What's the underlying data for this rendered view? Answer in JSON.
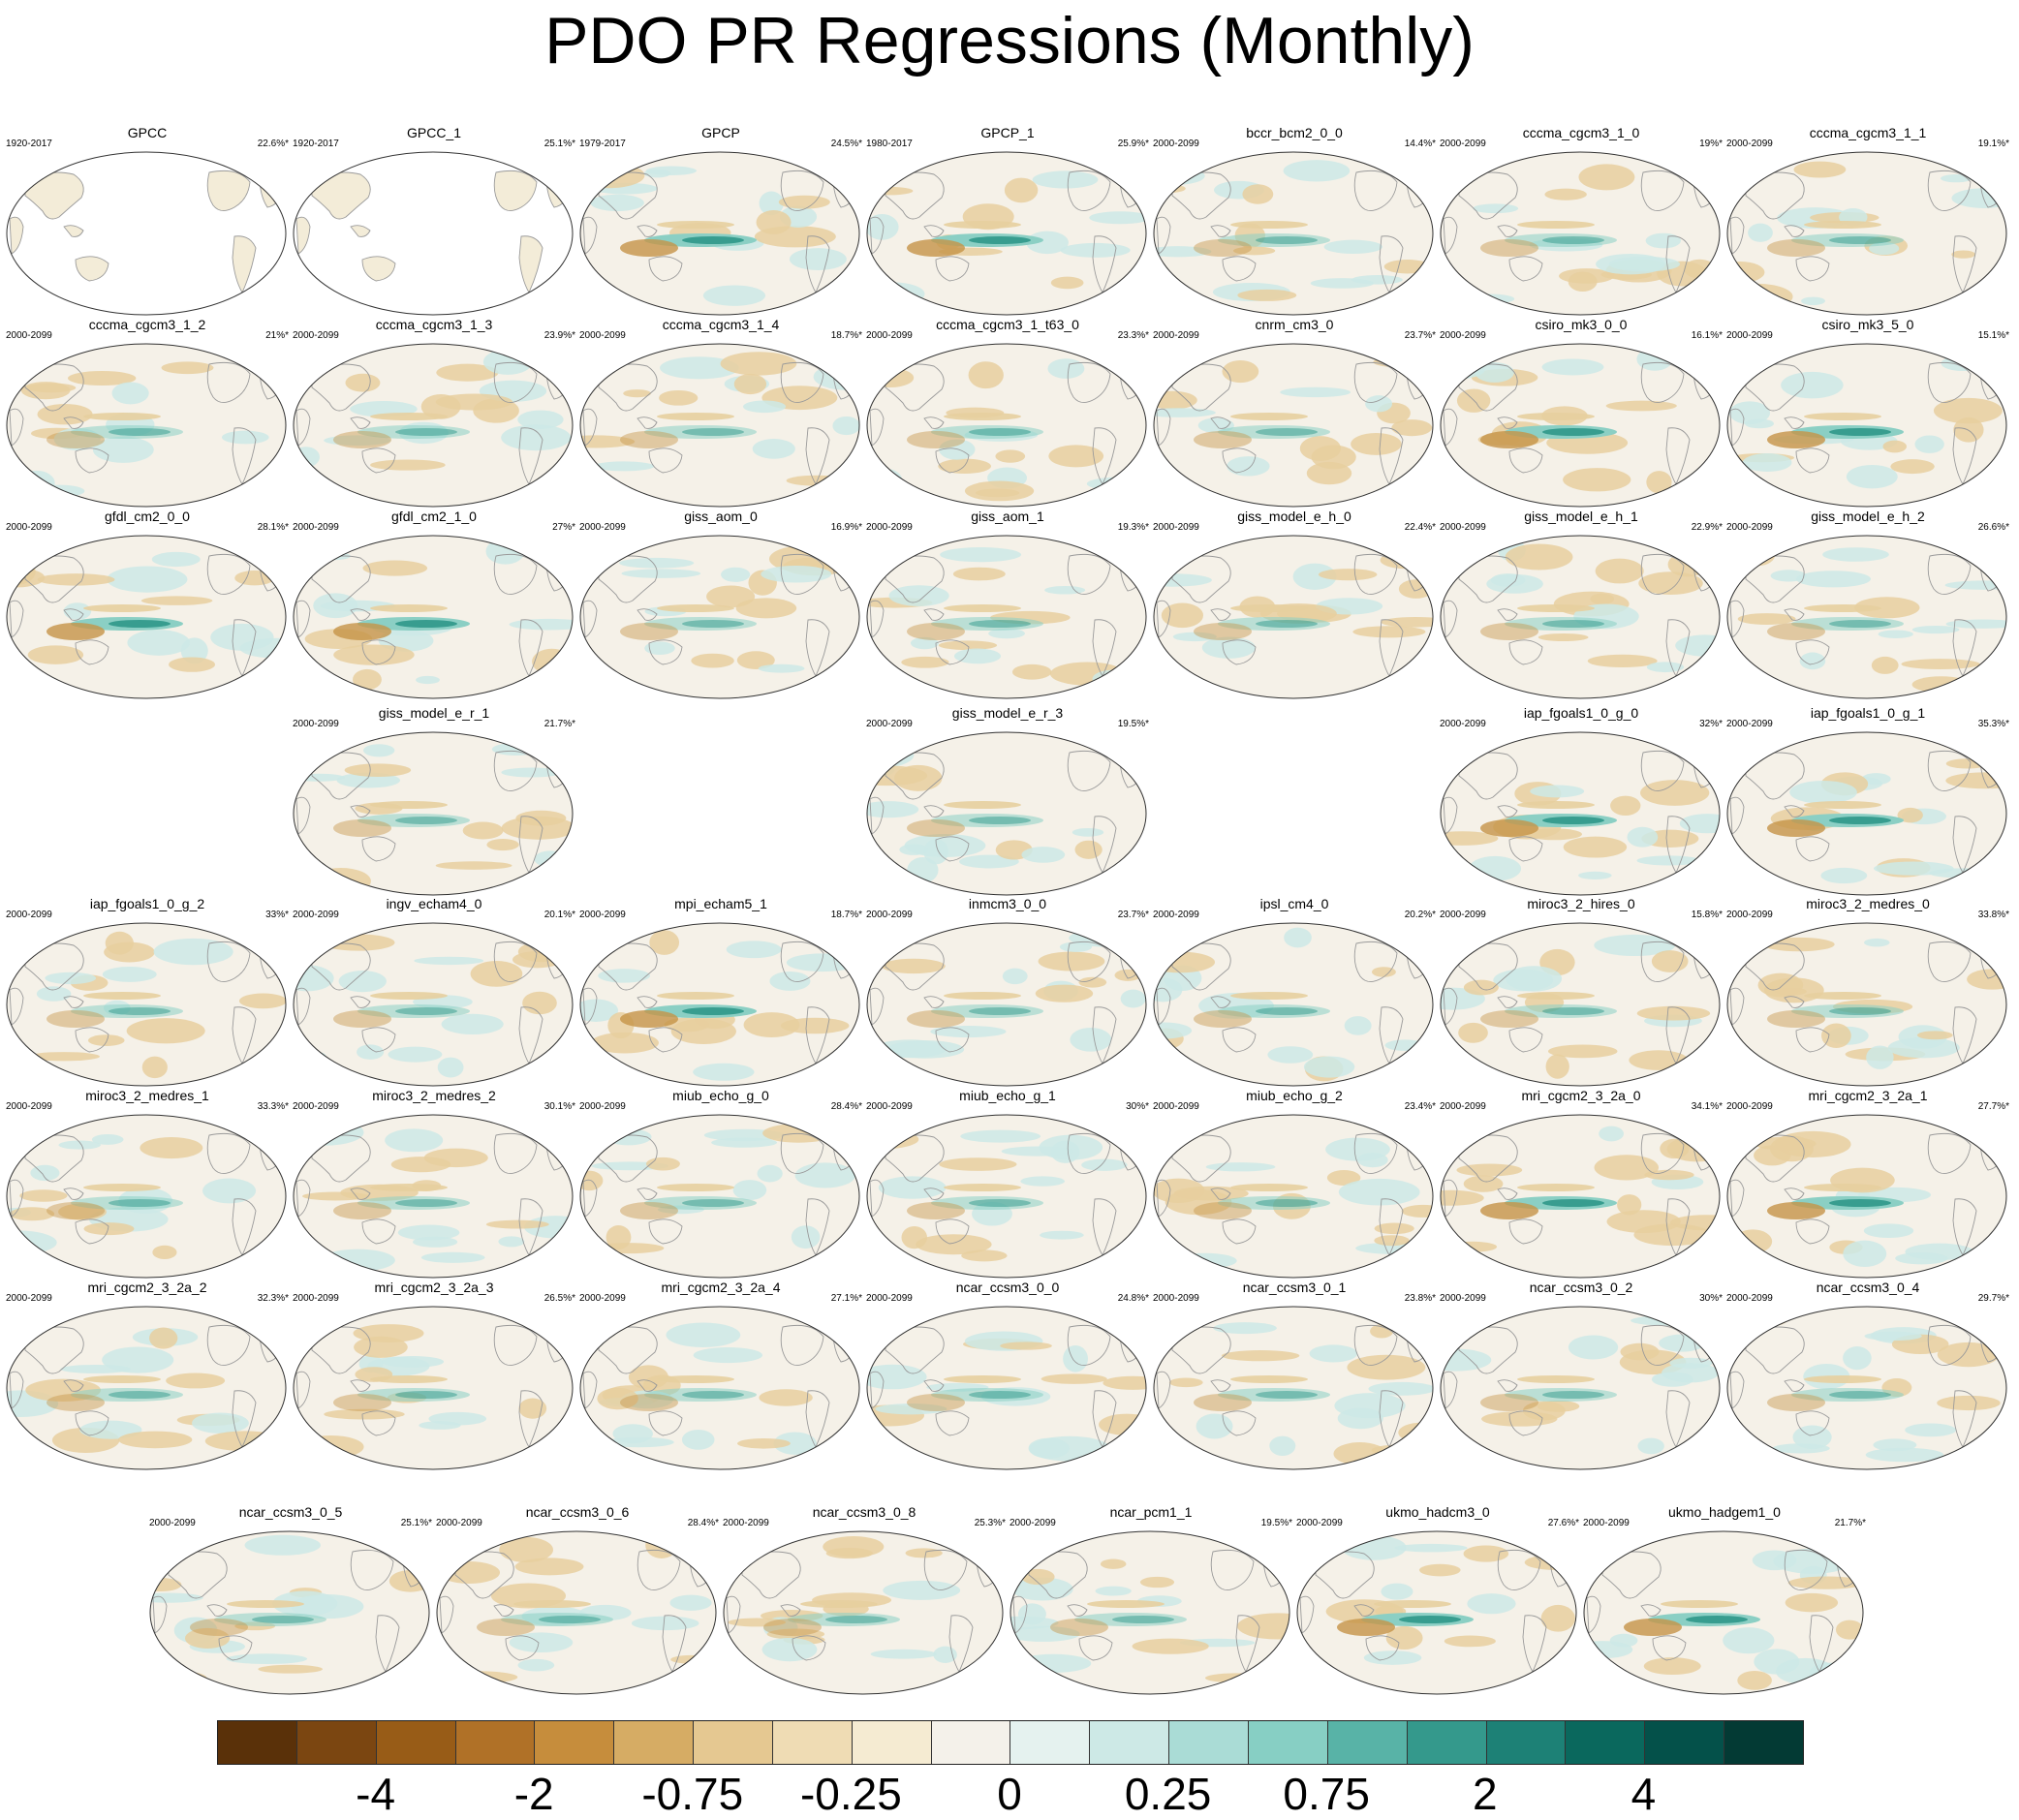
{
  "title": "PDO PR Regressions (Monthly)",
  "colors": {
    "brown_strong": "#8a5418",
    "brown": "#c59447",
    "tan": "#e7cf9f",
    "neutral": "#f5f1e8",
    "teal_light": "#cde9e6",
    "teal": "#8bcfc4",
    "teal_strong": "#2f978a",
    "land_line": "#9a9a9a"
  },
  "colorbar": {
    "boxes": [
      "#5a3109",
      "#7b4611",
      "#985c17",
      "#b07127",
      "#c68d3c",
      "#d6ac64",
      "#e5c891",
      "#efdcb4",
      "#f5ebd2",
      "#f4f1ea",
      "#e5f2ef",
      "#cde9e6",
      "#aadcd6",
      "#87cfc4",
      "#58b3a7",
      "#34998c",
      "#1d8176",
      "#0a685d",
      "#04514a",
      "#033a34"
    ],
    "labels": [
      "-4",
      "-2",
      "-0.75",
      "-0.25",
      "0",
      "0.25",
      "0.75",
      "2",
      "4"
    ]
  },
  "panels": [
    {
      "name": "GPCC",
      "period": "1920-2017",
      "pct": "22.6%*"
    },
    {
      "name": "GPCC_1",
      "period": "1920-2017",
      "pct": "25.1%*"
    },
    {
      "name": "GPCP",
      "period": "1979-2017",
      "pct": "24.5%*"
    },
    {
      "name": "GPCP_1",
      "period": "1980-2017",
      "pct": "25.9%*"
    },
    {
      "name": "bccr_bcm2_0_0",
      "period": "2000-2099",
      "pct": "14.4%*"
    },
    {
      "name": "cccma_cgcm3_1_0",
      "period": "2000-2099",
      "pct": "19%*"
    },
    {
      "name": "cccma_cgcm3_1_1",
      "period": "2000-2099",
      "pct": "19.1%*"
    },
    {
      "name": "cccma_cgcm3_1_2",
      "period": "2000-2099",
      "pct": "21%*"
    },
    {
      "name": "cccma_cgcm3_1_3",
      "period": "2000-2099",
      "pct": "23.9%*"
    },
    {
      "name": "cccma_cgcm3_1_4",
      "period": "2000-2099",
      "pct": "18.7%*"
    },
    {
      "name": "cccma_cgcm3_1_t63_0",
      "period": "2000-2099",
      "pct": "23.3%*"
    },
    {
      "name": "cnrm_cm3_0",
      "period": "2000-2099",
      "pct": "23.7%*"
    },
    {
      "name": "csiro_mk3_0_0",
      "period": "2000-2099",
      "pct": "16.1%*"
    },
    {
      "name": "csiro_mk3_5_0",
      "period": "2000-2099",
      "pct": "15.1%*"
    },
    {
      "name": "gfdl_cm2_0_0",
      "period": "2000-2099",
      "pct": "28.1%*"
    },
    {
      "name": "gfdl_cm2_1_0",
      "period": "2000-2099",
      "pct": "27%*"
    },
    {
      "name": "giss_aom_0",
      "period": "2000-2099",
      "pct": "16.9%*"
    },
    {
      "name": "giss_aom_1",
      "period": "2000-2099",
      "pct": "19.3%*"
    },
    {
      "name": "giss_model_e_h_0",
      "period": "2000-2099",
      "pct": "22.4%*"
    },
    {
      "name": "giss_model_e_h_1",
      "period": "2000-2099",
      "pct": "22.9%*"
    },
    {
      "name": "giss_model_e_h_2",
      "period": "2000-2099",
      "pct": "26.6%*"
    },
    {
      "name": "giss_model_e_r_1",
      "period": "2000-2099",
      "pct": "21.7%*"
    },
    {
      "name": "giss_model_e_r_3",
      "period": "2000-2099",
      "pct": "19.5%*"
    },
    {
      "name": "iap_fgoals1_0_g_0",
      "period": "2000-2099",
      "pct": "32%*"
    },
    {
      "name": "iap_fgoals1_0_g_1",
      "period": "2000-2099",
      "pct": "35.3%*"
    },
    {
      "name": "iap_fgoals1_0_g_2",
      "period": "2000-2099",
      "pct": "33%*"
    },
    {
      "name": "ingv_echam4_0",
      "period": "2000-2099",
      "pct": "20.1%*"
    },
    {
      "name": "mpi_echam5_1",
      "period": "2000-2099",
      "pct": "18.7%*"
    },
    {
      "name": "inmcm3_0_0",
      "period": "2000-2099",
      "pct": "23.7%*"
    },
    {
      "name": "ipsl_cm4_0",
      "period": "2000-2099",
      "pct": "20.2%*"
    },
    {
      "name": "miroc3_2_hires_0",
      "period": "2000-2099",
      "pct": "15.8%*"
    },
    {
      "name": "miroc3_2_medres_0",
      "period": "2000-2099",
      "pct": "33.8%*"
    },
    {
      "name": "miroc3_2_medres_1",
      "period": "2000-2099",
      "pct": "33.3%*"
    },
    {
      "name": "miroc3_2_medres_2",
      "period": "2000-2099",
      "pct": "30.1%*"
    },
    {
      "name": "miub_echo_g_0",
      "period": "2000-2099",
      "pct": "28.4%*"
    },
    {
      "name": "miub_echo_g_1",
      "period": "2000-2099",
      "pct": "30%*"
    },
    {
      "name": "miub_echo_g_2",
      "period": "2000-2099",
      "pct": "23.4%*"
    },
    {
      "name": "mri_cgcm2_3_2a_0",
      "period": "2000-2099",
      "pct": "34.1%*"
    },
    {
      "name": "mri_cgcm2_3_2a_1",
      "period": "2000-2099",
      "pct": "27.7%*"
    },
    {
      "name": "mri_cgcm2_3_2a_2",
      "period": "2000-2099",
      "pct": "32.3%*"
    },
    {
      "name": "mri_cgcm2_3_2a_3",
      "period": "2000-2099",
      "pct": "26.5%*"
    },
    {
      "name": "mri_cgcm2_3_2a_4",
      "period": "2000-2099",
      "pct": "27.1%*"
    },
    {
      "name": "ncar_ccsm3_0_0",
      "period": "2000-2099",
      "pct": "24.8%*"
    },
    {
      "name": "ncar_ccsm3_0_1",
      "period": "2000-2099",
      "pct": "23.8%*"
    },
    {
      "name": "ncar_ccsm3_0_2",
      "period": "2000-2099",
      "pct": "30%*"
    },
    {
      "name": "ncar_ccsm3_0_4",
      "period": "2000-2099",
      "pct": "29.7%*"
    },
    {
      "name": "ncar_ccsm3_0_5",
      "period": "2000-2099",
      "pct": "25.1%*"
    },
    {
      "name": "ncar_ccsm3_0_6",
      "period": "2000-2099",
      "pct": "28.4%*"
    },
    {
      "name": "ncar_ccsm3_0_8",
      "period": "2000-2099",
      "pct": "25.3%*"
    },
    {
      "name": "ncar_pcm1_1",
      "period": "2000-2099",
      "pct": "19.5%*"
    },
    {
      "name": "ukmo_hadcm3_0",
      "period": "2000-2099",
      "pct": "27.6%*"
    },
    {
      "name": "ukmo_hadgem1_0",
      "period": "2000-2099",
      "pct": "21.7%*"
    }
  ]
}
